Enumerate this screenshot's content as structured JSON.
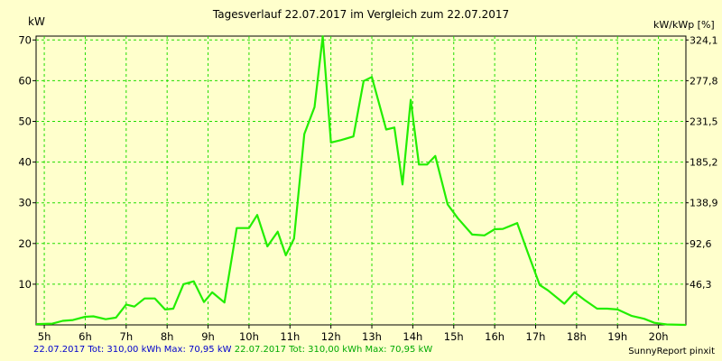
{
  "chart_data": {
    "type": "line",
    "title": "Tagesverlauf 22.07.2017 im Vergleich zum 22.07.2017",
    "ylabel": "kW",
    "y2label": "kW/kWp [%]",
    "ylim": [
      0,
      70.95
    ],
    "y_ticks": [
      10,
      20,
      30,
      40,
      50,
      60,
      70
    ],
    "y2_ticks": [
      "46,3",
      "92,6",
      "138,9",
      "185,2",
      "231,5",
      "277,8",
      "324,1"
    ],
    "x_ticks": [
      "5h",
      "6h",
      "7h",
      "8h",
      "9h",
      "10h",
      "11h",
      "12h",
      "13h",
      "14h",
      "15h",
      "16h",
      "17h",
      "18h",
      "19h",
      "20h"
    ],
    "xlim": [
      4.8,
      20.67
    ],
    "grid": true,
    "series": [
      {
        "color": "#22ee00",
        "x": [
          4.8,
          5.2,
          5.45,
          5.7,
          6.0,
          6.2,
          6.5,
          6.75,
          7.0,
          7.2,
          7.45,
          7.7,
          7.95,
          8.15,
          8.4,
          8.65,
          8.9,
          9.1,
          9.4,
          9.7,
          10.0,
          10.2,
          10.45,
          10.7,
          10.9,
          11.1,
          11.35,
          11.6,
          11.8,
          12.0,
          12.25,
          12.55,
          12.8,
          13.0,
          13.35,
          13.55,
          13.75,
          13.95,
          14.15,
          14.35,
          14.55,
          14.85,
          15.1,
          15.45,
          15.75,
          16.0,
          16.2,
          16.55,
          16.8,
          17.1,
          17.3,
          17.7,
          17.95,
          18.2,
          18.5,
          18.75,
          19.0,
          19.35,
          19.65,
          19.9,
          20.2,
          20.67
        ],
        "y": [
          0.2,
          0.3,
          1.0,
          1.2,
          2.0,
          2.1,
          1.4,
          1.8,
          5.0,
          4.5,
          6.5,
          6.5,
          3.8,
          4.0,
          10.0,
          10.7,
          5.6,
          8.0,
          5.5,
          23.8,
          23.8,
          27.0,
          19.3,
          22.9,
          17.1,
          21.2,
          46.9,
          53.5,
          70.9,
          44.8,
          45.4,
          46.3,
          59.9,
          60.9,
          48.0,
          48.5,
          34.5,
          55.3,
          39.4,
          39.4,
          41.5,
          29.6,
          26.2,
          22.2,
          22.0,
          23.5,
          23.6,
          25.0,
          18.0,
          9.8,
          8.5,
          5.2,
          8.0,
          6.1,
          4.0,
          4.0,
          3.8,
          2.2,
          1.5,
          0.5,
          0.1,
          0.0
        ]
      }
    ]
  },
  "footer": {
    "left_blue": "22.07.2017 Tot: 310,00 kWh Max: 70,95 kW",
    "left_green": "22.07.2017 Tot: 310,00 kWh Max: 70,95 kW",
    "right": "SunnyReport pinxit"
  },
  "colors": {
    "background": "#ffffcc",
    "grid": "#22dd00",
    "line": "#22ee00",
    "footer_blue": "#0000cc",
    "footer_green": "#00aa00"
  }
}
